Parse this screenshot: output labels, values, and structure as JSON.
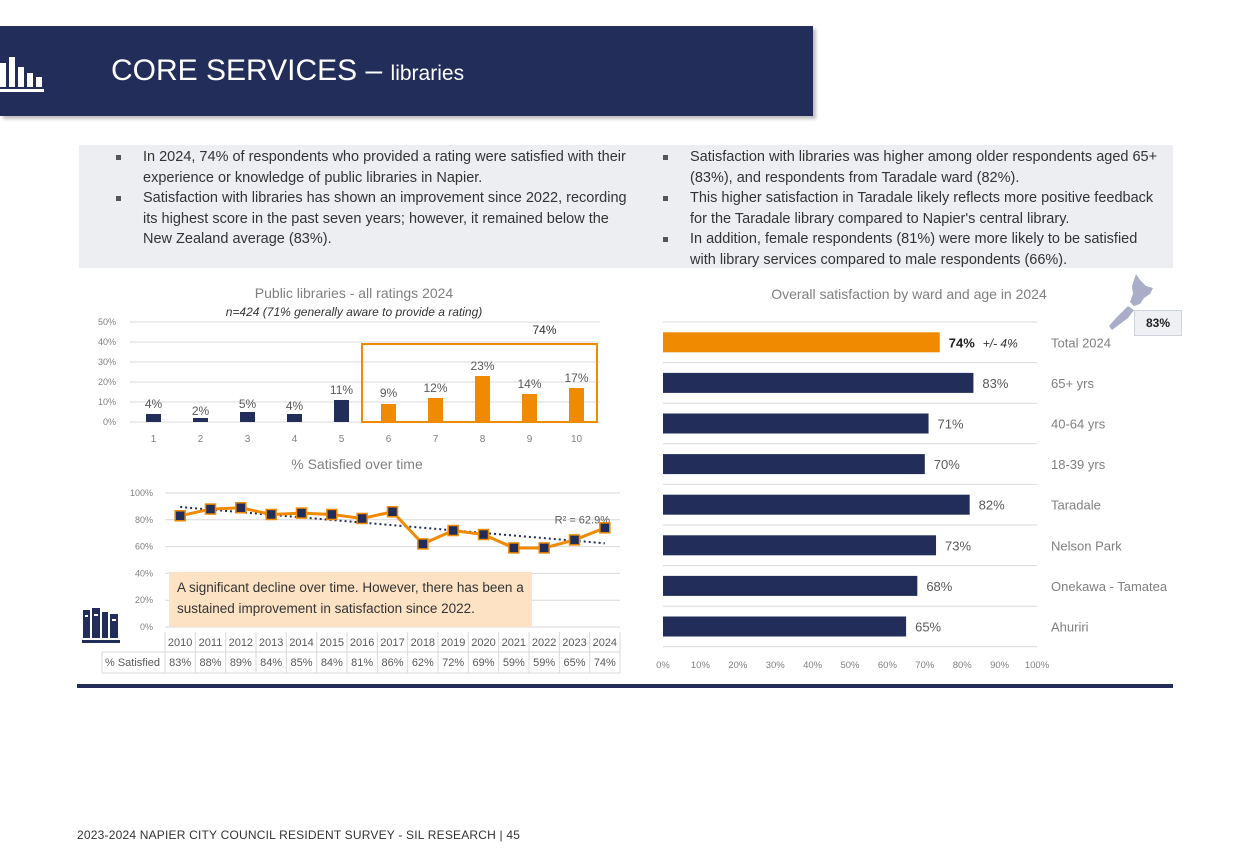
{
  "header": {
    "title": "CORE SERVICES",
    "dash": " – ",
    "subtitle": "libraries"
  },
  "bullets": {
    "left": [
      "In 2024, 74% of respondents who provided a rating were satisfied with their experience or knowledge of public libraries in Napier.",
      "Satisfaction with libraries has shown an improvement since 2022, recording its highest score in the past seven years; however, it remained below the New Zealand average (83%)."
    ],
    "right": [
      "Satisfaction with libraries was higher among older respondents aged 65+ (83%), and respondents from Taradale ward (82%).",
      "This higher satisfaction in Taradale likely reflects more positive feedback for the Taradale library compared to Napier's central library.",
      "In addition, female respondents (81%) were more likely to be satisfied with library services compared to male respondents (66%)."
    ]
  },
  "callout": "A significant decline over time. However, there has been a sustained improvement in satisfaction since 2022.",
  "nz_badge": "83%",
  "footer": "2023-2024 NAPIER CITY COUNCIL RESIDENT SURVEY - SIL RESEARCH | 45",
  "colors": {
    "navy": "#222d5a",
    "orange": "#f08a00",
    "grid": "#d9d9d9",
    "callout_bg": "#fde3c4"
  },
  "icons": {
    "header": "bar-chart-icon",
    "books": "books-icon",
    "map": "new-zealand-map-icon"
  },
  "chart_data": [
    {
      "type": "bar",
      "title": "Public libraries - all ratings 2024",
      "subtitle": "n=424 (71% generally aware to provide a rating)",
      "categories": [
        "1",
        "2",
        "3",
        "4",
        "5",
        "6",
        "7",
        "8",
        "9",
        "10"
      ],
      "values": [
        4,
        2,
        5,
        4,
        11,
        9,
        12,
        23,
        14,
        17
      ],
      "labels": [
        "4%",
        "2%",
        "5%",
        "4%",
        "11%",
        "9%",
        "12%",
        "23%",
        "14%",
        "17%"
      ],
      "yticks": [
        "0%",
        "10%",
        "20%",
        "30%",
        "40%",
        "50%"
      ],
      "ylim": [
        0,
        50
      ],
      "highlight": {
        "from": "6",
        "to": "10",
        "label": "74%"
      }
    },
    {
      "type": "line",
      "title": "% Satisfied over time",
      "x": [
        "2010",
        "2011",
        "2012",
        "2013",
        "2014",
        "2015",
        "2016",
        "2017",
        "2018",
        "2019",
        "2020",
        "2021",
        "2022",
        "2023",
        "2024"
      ],
      "values": [
        83,
        88,
        89,
        84,
        85,
        84,
        81,
        86,
        62,
        72,
        69,
        59,
        59,
        65,
        74
      ],
      "row_label": "% Satisfied",
      "row_values": [
        "83%",
        "88%",
        "89%",
        "84%",
        "85%",
        "84%",
        "81%",
        "86%",
        "62%",
        "72%",
        "69%",
        "59%",
        "59%",
        "65%",
        "74%"
      ],
      "yticks": [
        "0%",
        "20%",
        "40%",
        "60%",
        "80%",
        "100%"
      ],
      "ylim": [
        0,
        100
      ],
      "trendline": {
        "type": "linear",
        "label": "R² = 62.9%"
      }
    },
    {
      "type": "bar",
      "orientation": "horizontal",
      "title": "Overall satisfaction by ward and age in 2024",
      "categories": [
        "Total 2024",
        "65+ yrs",
        "40-64 yrs",
        "18-39 yrs",
        "Taradale",
        "Nelson Park",
        "Onekawa - Tamatea",
        "Ahuriri"
      ],
      "values": [
        74,
        83,
        71,
        70,
        82,
        73,
        68,
        65
      ],
      "labels": [
        "74%",
        "83%",
        "71%",
        "70%",
        "82%",
        "73%",
        "68%",
        "65%"
      ],
      "highlight_note": "+/- 4%",
      "xticks": [
        "0%",
        "10%",
        "20%",
        "30%",
        "40%",
        "50%",
        "60%",
        "70%",
        "80%",
        "90%",
        "100%"
      ],
      "xlim": [
        0,
        100
      ]
    }
  ]
}
